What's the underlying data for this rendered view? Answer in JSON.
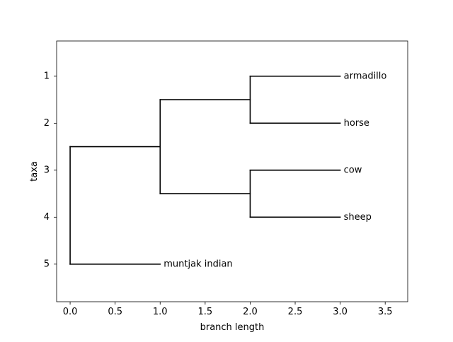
{
  "chart_data": {
    "type": "tree",
    "xlabel": "branch length",
    "ylabel": "taxa",
    "xlim": [
      -0.15,
      3.75
    ],
    "ylim": [
      5.8,
      0.25
    ],
    "x_ticks": [
      {
        "value": 0.0,
        "label": "0.0"
      },
      {
        "value": 0.5,
        "label": "0.5"
      },
      {
        "value": 1.0,
        "label": "1.0"
      },
      {
        "value": 1.5,
        "label": "1.5"
      },
      {
        "value": 2.0,
        "label": "2.0"
      },
      {
        "value": 2.5,
        "label": "2.5"
      },
      {
        "value": 3.0,
        "label": "3.0"
      },
      {
        "value": 3.5,
        "label": "3.5"
      }
    ],
    "y_ticks": [
      {
        "value": 1,
        "label": "1"
      },
      {
        "value": 2,
        "label": "2"
      },
      {
        "value": 3,
        "label": "3"
      },
      {
        "value": 4,
        "label": "4"
      },
      {
        "value": 5,
        "label": "5"
      }
    ],
    "branches": [
      {
        "name": "branch-root-v",
        "x1": 0.0,
        "y1": 2.5,
        "x2": 0.0,
        "y2": 5.0
      },
      {
        "name": "branch-root-to-inner",
        "x1": 0.0,
        "y1": 2.5,
        "x2": 1.0,
        "y2": 2.5
      },
      {
        "name": "branch-root-to-muntjak",
        "x1": 0.0,
        "y1": 5.0,
        "x2": 1.0,
        "y2": 5.0
      },
      {
        "name": "branch-inner-v",
        "x1": 1.0,
        "y1": 1.5,
        "x2": 1.0,
        "y2": 3.5
      },
      {
        "name": "branch-inner-to-clade-a",
        "x1": 1.0,
        "y1": 1.5,
        "x2": 2.0,
        "y2": 1.5
      },
      {
        "name": "branch-inner-to-clade-b",
        "x1": 1.0,
        "y1": 3.5,
        "x2": 2.0,
        "y2": 3.5
      },
      {
        "name": "branch-clade-a-v",
        "x1": 2.0,
        "y1": 1.0,
        "x2": 2.0,
        "y2": 2.0
      },
      {
        "name": "branch-to-armadillo",
        "x1": 2.0,
        "y1": 1.0,
        "x2": 3.0,
        "y2": 1.0
      },
      {
        "name": "branch-to-horse",
        "x1": 2.0,
        "y1": 2.0,
        "x2": 3.0,
        "y2": 2.0
      },
      {
        "name": "branch-clade-b-v",
        "x1": 2.0,
        "y1": 3.0,
        "x2": 2.0,
        "y2": 4.0
      },
      {
        "name": "branch-to-cow",
        "x1": 2.0,
        "y1": 3.0,
        "x2": 3.0,
        "y2": 3.0
      },
      {
        "name": "branch-to-sheep",
        "x1": 2.0,
        "y1": 4.0,
        "x2": 3.0,
        "y2": 4.0
      }
    ],
    "leaves": [
      {
        "label": "armadillo",
        "x": 3.0,
        "y": 1
      },
      {
        "label": "horse",
        "x": 3.0,
        "y": 2
      },
      {
        "label": "cow",
        "x": 3.0,
        "y": 3
      },
      {
        "label": "sheep",
        "x": 3.0,
        "y": 4
      },
      {
        "label": "muntjak indian",
        "x": 1.0,
        "y": 5
      }
    ],
    "grid": false,
    "line_color": "#000000"
  }
}
